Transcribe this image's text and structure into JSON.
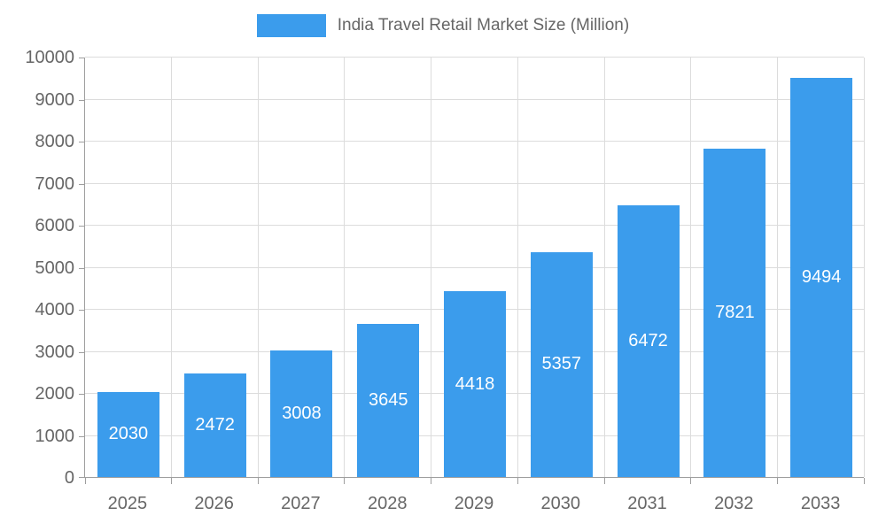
{
  "chart_data": {
    "type": "bar",
    "title": "India Travel Retail Market Size (Million)",
    "categories": [
      "2025",
      "2026",
      "2027",
      "2028",
      "2029",
      "2030",
      "2031",
      "2032",
      "2033"
    ],
    "values": [
      2030,
      2472,
      3008,
      3645,
      4418,
      5357,
      6472,
      7821,
      9494
    ],
    "xlabel": "",
    "ylabel": "",
    "ylim": [
      0,
      10000
    ],
    "y_tick_step": 1000,
    "y_tick_labels": [
      "0",
      "1000",
      "2000",
      "3000",
      "4000",
      "5000",
      "6000",
      "7000",
      "8000",
      "9000",
      "10000"
    ],
    "grid": true,
    "legend_position": "top",
    "bar_color": "#3b9cec",
    "bar_label_color": "#ffffff",
    "axis_text_color": "#666666",
    "grid_color": "#dcdcdc",
    "axis_line_color": "#9e9e9e"
  }
}
